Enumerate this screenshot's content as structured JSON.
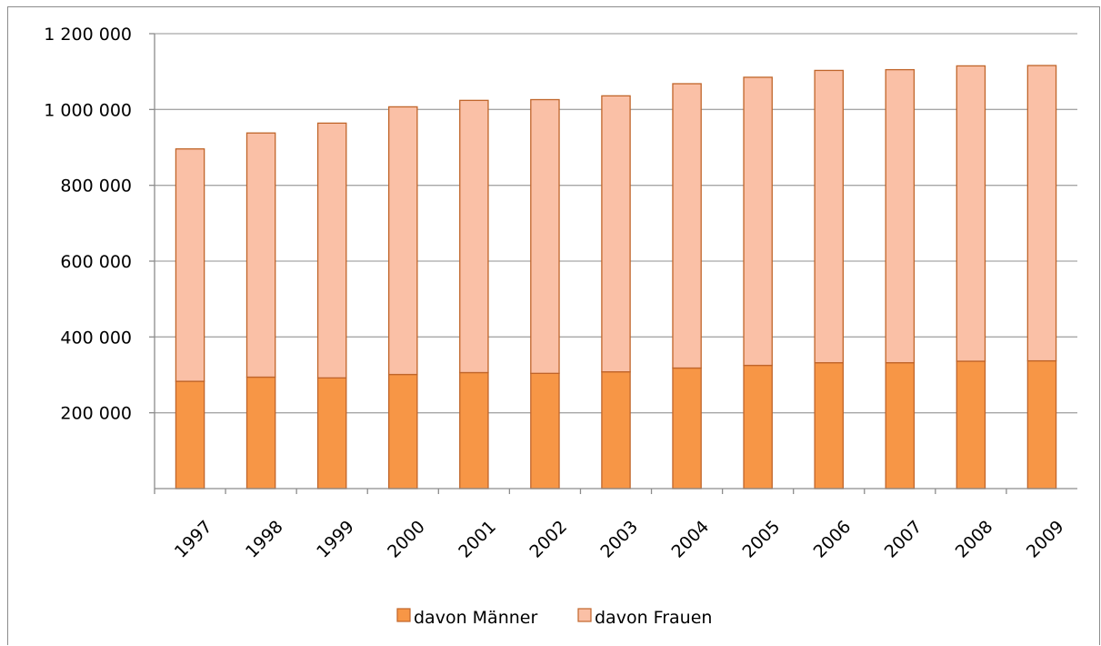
{
  "chart_data": {
    "type": "bar",
    "stacked": true,
    "categories": [
      "1997",
      "1998",
      "1999",
      "2000",
      "2001",
      "2002",
      "2003",
      "2004",
      "2005",
      "2006",
      "2007",
      "2008",
      "2009"
    ],
    "series": [
      {
        "name": "davon Männer",
        "color": "#f79646",
        "values": [
          283000,
          294000,
          292000,
          301000,
          306000,
          304000,
          308000,
          318000,
          325000,
          332000,
          332000,
          336000,
          337000
        ]
      },
      {
        "name": "davon Frauen",
        "color": "#fac0a6",
        "values": [
          613000,
          644000,
          672000,
          706000,
          718000,
          722000,
          728000,
          750000,
          760000,
          771000,
          773000,
          779000,
          779000
        ]
      }
    ],
    "ylim": [
      0,
      1200000
    ],
    "yticks": [
      200000,
      400000,
      600000,
      800000,
      1000000,
      1200000
    ],
    "ytick_labels": [
      "200 000",
      "400 000",
      "600 000",
      "800 000",
      "1 000 000",
      "1 200 000"
    ],
    "grid": true,
    "legend_position": "bottom",
    "title": "",
    "xlabel": "",
    "ylabel": "",
    "edge_color": "#c0652a",
    "grid_color": "#a6a6a6"
  }
}
